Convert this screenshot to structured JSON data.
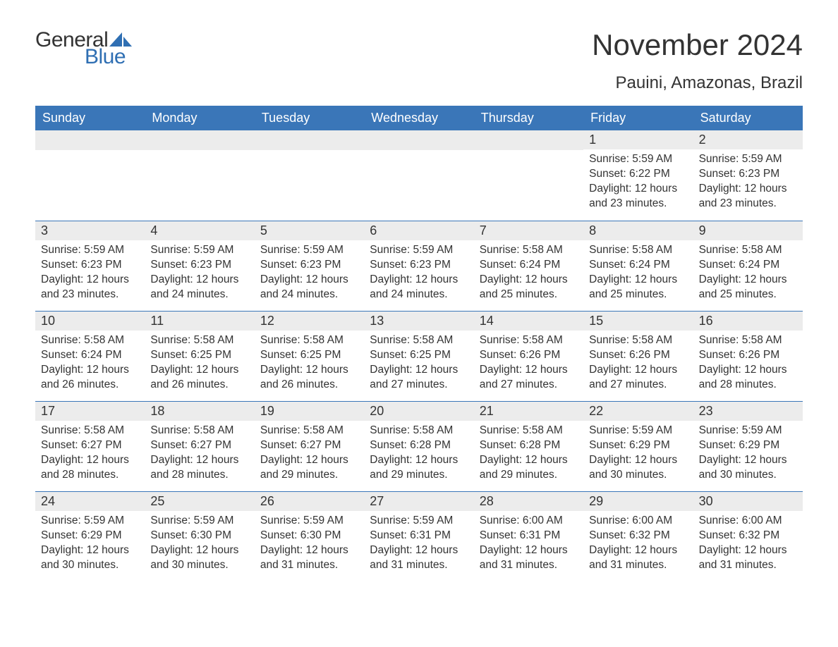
{
  "brand": {
    "word1": "General",
    "word2": "Blue",
    "word1_color": "#333333",
    "word2_color": "#2f6fb3",
    "sail_color": "#2f6fb3"
  },
  "title": "November 2024",
  "location": "Pauini, Amazonas, Brazil",
  "colors": {
    "header_bg": "#3a76b8",
    "header_text": "#ffffff",
    "daynum_bg": "#ececec",
    "daynum_border": "#3a76b8",
    "body_text": "#333333",
    "page_bg": "#ffffff"
  },
  "typography": {
    "title_fontsize": 42,
    "location_fontsize": 24,
    "weekday_fontsize": 18,
    "daynum_fontsize": 18,
    "body_fontsize": 15.5,
    "logo_fontsize": 30
  },
  "layout": {
    "columns": 7,
    "rows": 5,
    "cell_min_height": 128
  },
  "weekdays": [
    "Sunday",
    "Monday",
    "Tuesday",
    "Wednesday",
    "Thursday",
    "Friday",
    "Saturday"
  ],
  "weeks": [
    [
      null,
      null,
      null,
      null,
      null,
      {
        "n": "1",
        "sunrise": "Sunrise: 5:59 AM",
        "sunset": "Sunset: 6:22 PM",
        "daylight1": "Daylight: 12 hours",
        "daylight2": "and 23 minutes."
      },
      {
        "n": "2",
        "sunrise": "Sunrise: 5:59 AM",
        "sunset": "Sunset: 6:23 PM",
        "daylight1": "Daylight: 12 hours",
        "daylight2": "and 23 minutes."
      }
    ],
    [
      {
        "n": "3",
        "sunrise": "Sunrise: 5:59 AM",
        "sunset": "Sunset: 6:23 PM",
        "daylight1": "Daylight: 12 hours",
        "daylight2": "and 23 minutes."
      },
      {
        "n": "4",
        "sunrise": "Sunrise: 5:59 AM",
        "sunset": "Sunset: 6:23 PM",
        "daylight1": "Daylight: 12 hours",
        "daylight2": "and 24 minutes."
      },
      {
        "n": "5",
        "sunrise": "Sunrise: 5:59 AM",
        "sunset": "Sunset: 6:23 PM",
        "daylight1": "Daylight: 12 hours",
        "daylight2": "and 24 minutes."
      },
      {
        "n": "6",
        "sunrise": "Sunrise: 5:59 AM",
        "sunset": "Sunset: 6:23 PM",
        "daylight1": "Daylight: 12 hours",
        "daylight2": "and 24 minutes."
      },
      {
        "n": "7",
        "sunrise": "Sunrise: 5:58 AM",
        "sunset": "Sunset: 6:24 PM",
        "daylight1": "Daylight: 12 hours",
        "daylight2": "and 25 minutes."
      },
      {
        "n": "8",
        "sunrise": "Sunrise: 5:58 AM",
        "sunset": "Sunset: 6:24 PM",
        "daylight1": "Daylight: 12 hours",
        "daylight2": "and 25 minutes."
      },
      {
        "n": "9",
        "sunrise": "Sunrise: 5:58 AM",
        "sunset": "Sunset: 6:24 PM",
        "daylight1": "Daylight: 12 hours",
        "daylight2": "and 25 minutes."
      }
    ],
    [
      {
        "n": "10",
        "sunrise": "Sunrise: 5:58 AM",
        "sunset": "Sunset: 6:24 PM",
        "daylight1": "Daylight: 12 hours",
        "daylight2": "and 26 minutes."
      },
      {
        "n": "11",
        "sunrise": "Sunrise: 5:58 AM",
        "sunset": "Sunset: 6:25 PM",
        "daylight1": "Daylight: 12 hours",
        "daylight2": "and 26 minutes."
      },
      {
        "n": "12",
        "sunrise": "Sunrise: 5:58 AM",
        "sunset": "Sunset: 6:25 PM",
        "daylight1": "Daylight: 12 hours",
        "daylight2": "and 26 minutes."
      },
      {
        "n": "13",
        "sunrise": "Sunrise: 5:58 AM",
        "sunset": "Sunset: 6:25 PM",
        "daylight1": "Daylight: 12 hours",
        "daylight2": "and 27 minutes."
      },
      {
        "n": "14",
        "sunrise": "Sunrise: 5:58 AM",
        "sunset": "Sunset: 6:26 PM",
        "daylight1": "Daylight: 12 hours",
        "daylight2": "and 27 minutes."
      },
      {
        "n": "15",
        "sunrise": "Sunrise: 5:58 AM",
        "sunset": "Sunset: 6:26 PM",
        "daylight1": "Daylight: 12 hours",
        "daylight2": "and 27 minutes."
      },
      {
        "n": "16",
        "sunrise": "Sunrise: 5:58 AM",
        "sunset": "Sunset: 6:26 PM",
        "daylight1": "Daylight: 12 hours",
        "daylight2": "and 28 minutes."
      }
    ],
    [
      {
        "n": "17",
        "sunrise": "Sunrise: 5:58 AM",
        "sunset": "Sunset: 6:27 PM",
        "daylight1": "Daylight: 12 hours",
        "daylight2": "and 28 minutes."
      },
      {
        "n": "18",
        "sunrise": "Sunrise: 5:58 AM",
        "sunset": "Sunset: 6:27 PM",
        "daylight1": "Daylight: 12 hours",
        "daylight2": "and 28 minutes."
      },
      {
        "n": "19",
        "sunrise": "Sunrise: 5:58 AM",
        "sunset": "Sunset: 6:27 PM",
        "daylight1": "Daylight: 12 hours",
        "daylight2": "and 29 minutes."
      },
      {
        "n": "20",
        "sunrise": "Sunrise: 5:58 AM",
        "sunset": "Sunset: 6:28 PM",
        "daylight1": "Daylight: 12 hours",
        "daylight2": "and 29 minutes."
      },
      {
        "n": "21",
        "sunrise": "Sunrise: 5:58 AM",
        "sunset": "Sunset: 6:28 PM",
        "daylight1": "Daylight: 12 hours",
        "daylight2": "and 29 minutes."
      },
      {
        "n": "22",
        "sunrise": "Sunrise: 5:59 AM",
        "sunset": "Sunset: 6:29 PM",
        "daylight1": "Daylight: 12 hours",
        "daylight2": "and 30 minutes."
      },
      {
        "n": "23",
        "sunrise": "Sunrise: 5:59 AM",
        "sunset": "Sunset: 6:29 PM",
        "daylight1": "Daylight: 12 hours",
        "daylight2": "and 30 minutes."
      }
    ],
    [
      {
        "n": "24",
        "sunrise": "Sunrise: 5:59 AM",
        "sunset": "Sunset: 6:29 PM",
        "daylight1": "Daylight: 12 hours",
        "daylight2": "and 30 minutes."
      },
      {
        "n": "25",
        "sunrise": "Sunrise: 5:59 AM",
        "sunset": "Sunset: 6:30 PM",
        "daylight1": "Daylight: 12 hours",
        "daylight2": "and 30 minutes."
      },
      {
        "n": "26",
        "sunrise": "Sunrise: 5:59 AM",
        "sunset": "Sunset: 6:30 PM",
        "daylight1": "Daylight: 12 hours",
        "daylight2": "and 31 minutes."
      },
      {
        "n": "27",
        "sunrise": "Sunrise: 5:59 AM",
        "sunset": "Sunset: 6:31 PM",
        "daylight1": "Daylight: 12 hours",
        "daylight2": "and 31 minutes."
      },
      {
        "n": "28",
        "sunrise": "Sunrise: 6:00 AM",
        "sunset": "Sunset: 6:31 PM",
        "daylight1": "Daylight: 12 hours",
        "daylight2": "and 31 minutes."
      },
      {
        "n": "29",
        "sunrise": "Sunrise: 6:00 AM",
        "sunset": "Sunset: 6:32 PM",
        "daylight1": "Daylight: 12 hours",
        "daylight2": "and 31 minutes."
      },
      {
        "n": "30",
        "sunrise": "Sunrise: 6:00 AM",
        "sunset": "Sunset: 6:32 PM",
        "daylight1": "Daylight: 12 hours",
        "daylight2": "and 31 minutes."
      }
    ]
  ]
}
